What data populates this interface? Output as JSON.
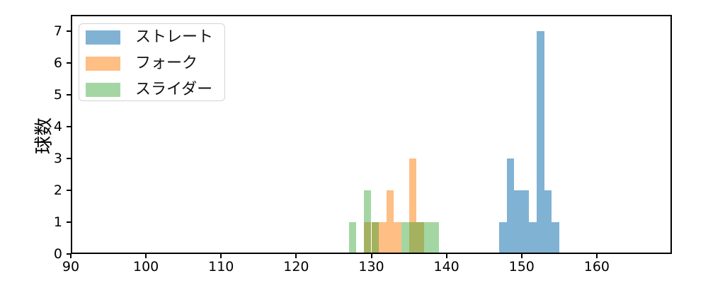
{
  "chart_data": {
    "type": "bar",
    "subtype": "histogram",
    "title": "",
    "xlabel": "",
    "ylabel": "球数",
    "xlim": [
      90,
      170
    ],
    "ylim": [
      0,
      7.5
    ],
    "x_ticks": [
      90,
      100,
      110,
      120,
      130,
      140,
      150,
      160
    ],
    "y_ticks": [
      0,
      1,
      2,
      3,
      4,
      5,
      6,
      7
    ],
    "grid": false,
    "legend_position": "upper left",
    "bin_width": 1,
    "series": [
      {
        "key": "straight",
        "name": "ストレート",
        "color": "#1f77b4",
        "alpha": 0.57,
        "bins": [
          {
            "from": 147,
            "to": 148,
            "n": 1
          },
          {
            "from": 148,
            "to": 149,
            "n": 3
          },
          {
            "from": 149,
            "to": 150,
            "n": 2
          },
          {
            "from": 150,
            "to": 151,
            "n": 2
          },
          {
            "from": 151,
            "to": 152,
            "n": 1
          },
          {
            "from": 152,
            "to": 153,
            "n": 7
          },
          {
            "from": 153,
            "to": 154,
            "n": 2
          },
          {
            "from": 154,
            "to": 155,
            "n": 1
          }
        ]
      },
      {
        "key": "fork",
        "name": "フォーク",
        "color": "#ff7f0e",
        "alpha": 0.51,
        "bins": [
          {
            "from": 129,
            "to": 130,
            "n": 1
          },
          {
            "from": 130,
            "to": 131,
            "n": 1
          },
          {
            "from": 131,
            "to": 132,
            "n": 1
          },
          {
            "from": 132,
            "to": 133,
            "n": 2
          },
          {
            "from": 133,
            "to": 134,
            "n": 1
          },
          {
            "from": 135,
            "to": 136,
            "n": 3
          },
          {
            "from": 136,
            "to": 137,
            "n": 1
          }
        ]
      },
      {
        "key": "slider",
        "name": "スライダー",
        "color": "#2ca02c",
        "alpha": 0.43,
        "bins": [
          {
            "from": 127,
            "to": 128,
            "n": 1
          },
          {
            "from": 129,
            "to": 130,
            "n": 2
          },
          {
            "from": 130,
            "to": 131,
            "n": 1
          },
          {
            "from": 134,
            "to": 135,
            "n": 1
          },
          {
            "from": 135,
            "to": 136,
            "n": 1
          },
          {
            "from": 136,
            "to": 137,
            "n": 1
          },
          {
            "from": 137,
            "to": 138,
            "n": 1
          },
          {
            "from": 138,
            "to": 139,
            "n": 1
          }
        ]
      }
    ]
  }
}
